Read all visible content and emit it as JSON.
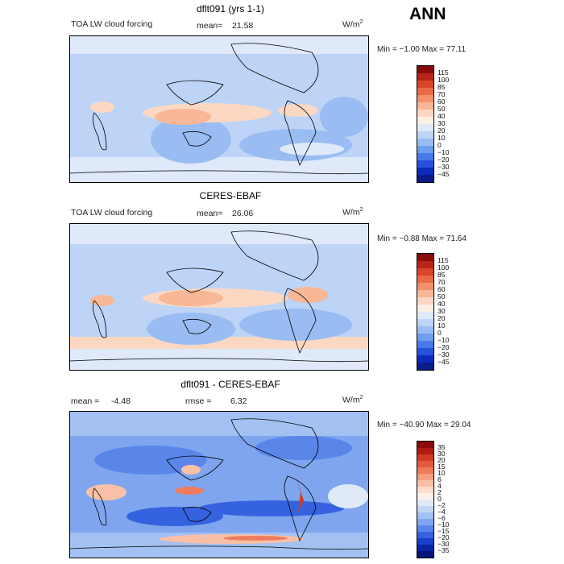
{
  "season": "ANN",
  "panels": [
    {
      "title": "dflt091 (yrs 1-1)",
      "left_label": "TOA LW cloud forcing",
      "stat1": "mean=",
      "stat1_value": "21.58",
      "stat2": "",
      "stat2_value": "",
      "units": "W/m",
      "units_sup": "2",
      "min_max": "Min =   −1.00 Max =   77.11",
      "levels": [
        "115",
        "100",
        "85",
        "70",
        "60",
        "50",
        "40",
        "30",
        "20",
        "10",
        "0",
        "−10",
        "−20",
        "−30",
        "−45"
      ],
      "colors": [
        "#8b0a0a",
        "#b82418",
        "#d9452a",
        "#ea6a48",
        "#f3916d",
        "#f8b796",
        "#fcd8c3",
        "#fcefe4",
        "#dfe9f9",
        "#bdd4f6",
        "#99bdf2",
        "#6f9df0",
        "#4a79eb",
        "#2750dd",
        "#0a2bbd",
        "#0a1b8a"
      ]
    },
    {
      "title": "CERES-EBAF",
      "left_label": "TOA LW cloud forcing",
      "stat1": "mean=",
      "stat1_value": "26.06",
      "stat2": "",
      "stat2_value": "",
      "units": "W/m",
      "units_sup": "2",
      "min_max": "Min =   −0.88 Max =   71.64",
      "levels": [
        "115",
        "100",
        "85",
        "70",
        "60",
        "50",
        "40",
        "30",
        "20",
        "10",
        "0",
        "−10",
        "−20",
        "−30",
        "−45"
      ],
      "colors": [
        "#8b0a0a",
        "#b82418",
        "#d9452a",
        "#ea6a48",
        "#f3916d",
        "#f8b796",
        "#fcd8c3",
        "#fcefe4",
        "#dfe9f9",
        "#bdd4f6",
        "#99bdf2",
        "#6f9df0",
        "#4a79eb",
        "#2750dd",
        "#0a2bbd",
        "#0a1b8a"
      ]
    },
    {
      "title": "dflt091 - CERES-EBAF",
      "left_label": "",
      "stat1": "mean =",
      "stat1_value": "-4.48",
      "stat2": "rmse =",
      "stat2_value": "6.32",
      "units": "W/m",
      "units_sup": "2",
      "min_max": "Min = −40.90 Max =   29.04",
      "levels": [
        "35",
        "30",
        "20",
        "15",
        "10",
        "6",
        "4",
        "2",
        "0",
        "−2",
        "−4",
        "−6",
        "−10",
        "−15",
        "−20",
        "−30",
        "−35"
      ],
      "colors": [
        "#8b0a0a",
        "#b01d14",
        "#d13a24",
        "#e45a3a",
        "#ef7c5a",
        "#f59e80",
        "#f9c0a8",
        "#fcdccd",
        "#fcf0e8",
        "#e0e9f8",
        "#c3d6f5",
        "#a3c0f2",
        "#7fa5ef",
        "#5a86ea",
        "#3563df",
        "#1a3fcc",
        "#0c23a6",
        "#06147a"
      ]
    }
  ]
}
